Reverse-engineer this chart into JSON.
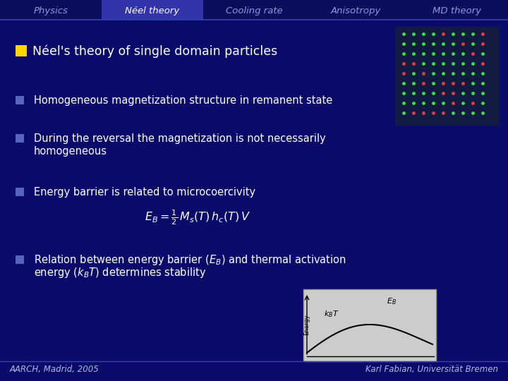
{
  "bg_color": "#0A0A6B",
  "tab_bg_dark": "#0D0D5E",
  "tab_bg_active": "#3333AA",
  "tab_labels": [
    "Physics",
    "Néel theory",
    "Cooling rate",
    "Anisotropy",
    "MD theory"
  ],
  "active_tab_index": 1,
  "tab_text_active": "#FFFFFF",
  "tab_text_inactive": "#8899DD",
  "title_text": "Néel's theory of single domain particles",
  "title_bullet_color": "#FFD700",
  "bullet_color": "#5566BB",
  "text_color": "#FFFFFF",
  "formula": "$E_B = \\frac{1}{2}\\,M_s(T)\\,h_c(T)\\,V$",
  "footer_left": "AARCH, Madrid, 2005",
  "footer_right": "Karl Fabian, Universität Bremen",
  "footer_color": "#AABBDD",
  "separator_color": "#3344AA"
}
